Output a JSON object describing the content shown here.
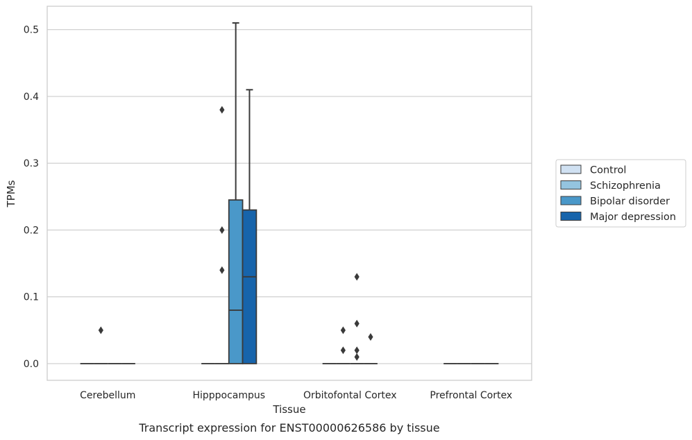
{
  "chart_data": {
    "type": "box",
    "xlabel": "Tissue",
    "ylabel": "TPMs",
    "caption": "Transcript expression for ENST00000626586 by tissue",
    "categories": [
      "Cerebellum",
      "Hipppocampus",
      "Orbitofontal Cortex",
      "Prefrontal Cortex"
    ],
    "ylim": [
      -0.025,
      0.535
    ],
    "yticks": [
      "0.0",
      "0.1",
      "0.2",
      "0.3",
      "0.4",
      "0.5"
    ],
    "grid": "y",
    "legend_position": "right",
    "series": [
      {
        "name": "Control",
        "color": "#d0e1f2",
        "boxes": [
          {
            "category": "Cerebellum",
            "min": 0,
            "q1": 0,
            "median": 0,
            "q3": 0,
            "max": 0,
            "outliers": []
          },
          {
            "category": "Hipppocampus",
            "min": 0,
            "q1": 0,
            "median": 0,
            "q3": 0,
            "max": 0,
            "outliers": []
          },
          {
            "category": "Orbitofontal Cortex",
            "min": 0,
            "q1": 0,
            "median": 0,
            "q3": 0,
            "max": 0,
            "outliers": []
          },
          {
            "category": "Prefrontal Cortex",
            "min": 0,
            "q1": 0,
            "median": 0,
            "q3": 0,
            "max": 0,
            "outliers": []
          }
        ]
      },
      {
        "name": "Schizophrenia",
        "color": "#94c4df",
        "boxes": [
          {
            "category": "Cerebellum",
            "min": 0,
            "q1": 0,
            "median": 0,
            "q3": 0,
            "max": 0,
            "outliers": [
              0.05
            ]
          },
          {
            "category": "Hipppocampus",
            "min": 0,
            "q1": 0,
            "median": 0,
            "q3": 0,
            "max": 0,
            "outliers": [
              0.38,
              0.2,
              0.14
            ]
          },
          {
            "category": "Orbitofontal Cortex",
            "min": 0,
            "q1": 0,
            "median": 0,
            "q3": 0,
            "max": 0,
            "outliers": [
              0.05,
              0.02
            ]
          },
          {
            "category": "Prefrontal Cortex",
            "min": 0,
            "q1": 0,
            "median": 0,
            "q3": 0,
            "max": 0,
            "outliers": []
          }
        ]
      },
      {
        "name": "Bipolar disorder",
        "color": "#4a98c9",
        "boxes": [
          {
            "category": "Cerebellum",
            "min": 0,
            "q1": 0,
            "median": 0,
            "q3": 0,
            "max": 0,
            "outliers": []
          },
          {
            "category": "Hipppocampus",
            "min": 0,
            "q1": 0,
            "median": 0.08,
            "q3": 0.245,
            "max": 0.51,
            "outliers": []
          },
          {
            "category": "Orbitofontal Cortex",
            "min": 0,
            "q1": 0,
            "median": 0,
            "q3": 0,
            "max": 0,
            "outliers": [
              0.02,
              0.13,
              0.06,
              0.01
            ]
          },
          {
            "category": "Prefrontal Cortex",
            "min": 0,
            "q1": 0,
            "median": 0,
            "q3": 0,
            "max": 0,
            "outliers": []
          }
        ]
      },
      {
        "name": "Major depression",
        "color": "#1764ab",
        "boxes": [
          {
            "category": "Cerebellum",
            "min": 0,
            "q1": 0,
            "median": 0,
            "q3": 0,
            "max": 0,
            "outliers": []
          },
          {
            "category": "Hipppocampus",
            "min": 0,
            "q1": 0,
            "median": 0.13,
            "q3": 0.23,
            "max": 0.41,
            "outliers": []
          },
          {
            "category": "Orbitofontal Cortex",
            "min": 0,
            "q1": 0,
            "median": 0,
            "q3": 0,
            "max": 0,
            "outliers": [
              0.04
            ]
          },
          {
            "category": "Prefrontal Cortex",
            "min": 0,
            "q1": 0,
            "median": 0,
            "q3": 0,
            "max": 0,
            "outliers": []
          }
        ]
      }
    ]
  }
}
